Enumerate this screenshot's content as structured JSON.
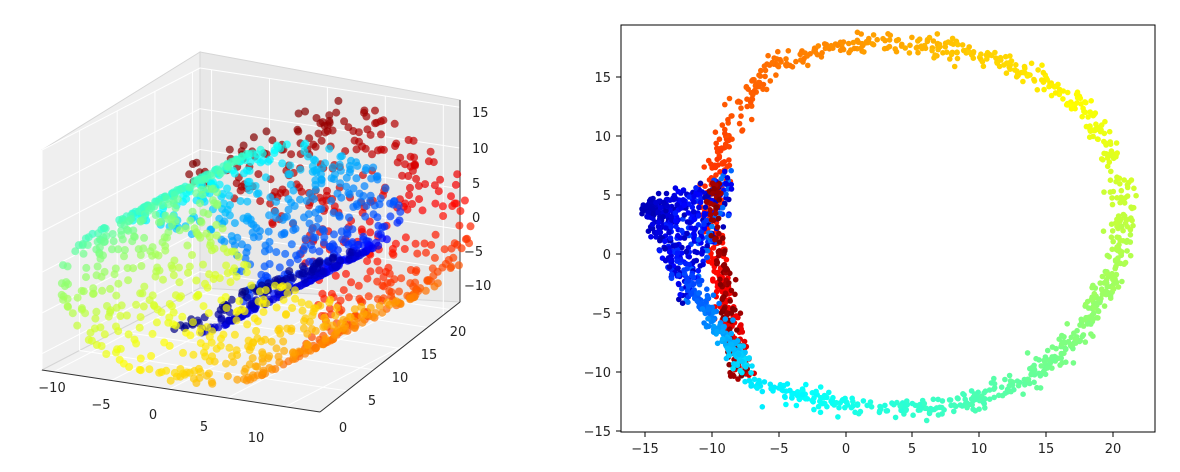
{
  "chart_data": [
    {
      "type": "scatter",
      "projection": "3d",
      "title": "",
      "x_ticks": [
        "−10",
        "−5",
        "0",
        "5",
        "10"
      ],
      "y_ticks": [
        "0",
        "5",
        "10",
        "15",
        "20"
      ],
      "z_ticks": [
        "15",
        "10",
        "5",
        "0",
        "−5",
        "−10"
      ],
      "xlim": [
        -11,
        13
      ],
      "ylim": [
        0,
        21
      ],
      "zlim": [
        -12,
        15
      ],
      "colormap": "jet",
      "grid": true,
      "panes": "light gray",
      "data_description": "Swiss roll point cloud, color encodes position along the roll",
      "roll": {
        "t_min": 4.71,
        "t_max": 14.14,
        "height_min": 0,
        "height_max": 21
      }
    },
    {
      "type": "scatter",
      "title": "",
      "xlabel": "",
      "ylabel": "",
      "x_ticks": [
        "−15",
        "−10",
        "−5",
        "0",
        "5",
        "10",
        "15",
        "20"
      ],
      "y_ticks": [
        "15",
        "10",
        "5",
        "0",
        "−5",
        "−10",
        "−15"
      ],
      "x_tick_values": [
        -15,
        -10,
        -5,
        0,
        5,
        10,
        15,
        20
      ],
      "y_tick_values": [
        15,
        10,
        5,
        0,
        -5,
        -10,
        -15
      ],
      "xlim": [
        -16.8,
        23.2
      ],
      "ylim": [
        -15.2,
        19.2
      ],
      "colormap": "jet",
      "grid": false,
      "loop_path": [
        [
          -7.3,
          -11.0
        ],
        [
          -5.0,
          -11.6
        ],
        [
          -2.0,
          -12.4
        ],
        [
          1.0,
          -13.0
        ],
        [
          4.0,
          -13.2
        ],
        [
          7.0,
          -13.0
        ],
        [
          10.0,
          -12.4
        ],
        [
          13.0,
          -11.2
        ],
        [
          16.0,
          -8.8
        ],
        [
          18.0,
          -6.2
        ],
        [
          19.5,
          -3.0
        ],
        [
          20.5,
          0.0
        ],
        [
          21.0,
          3.0
        ],
        [
          20.6,
          6.0
        ],
        [
          19.6,
          9.0
        ],
        [
          18.0,
          11.8
        ],
        [
          15.5,
          14.2
        ],
        [
          12.5,
          15.8
        ],
        [
          9.0,
          17.0
        ],
        [
          5.0,
          17.6
        ],
        [
          1.0,
          17.6
        ],
        [
          -2.5,
          17.0
        ],
        [
          -5.5,
          15.6
        ],
        [
          -7.5,
          13.0
        ],
        [
          -8.8,
          10.0
        ],
        [
          -9.6,
          7.0
        ],
        [
          -10.2,
          4.0
        ],
        [
          -10.0,
          1.0
        ],
        [
          -9.5,
          -2.0
        ],
        [
          -8.8,
          -5.0
        ],
        [
          -8.0,
          -8.0
        ],
        [
          -7.5,
          -10.0
        ]
      ],
      "wedge_apex": [
        -15.0,
        4.0
      ],
      "wedge_end_range": [
        [
          -11.8,
          -5.0
        ],
        [
          -8.0,
          6.7
        ]
      ],
      "tail_range": [
        [
          -12.2,
          -9.7
        ],
        [
          -8.8,
          -10.0
        ]
      ]
    }
  ]
}
